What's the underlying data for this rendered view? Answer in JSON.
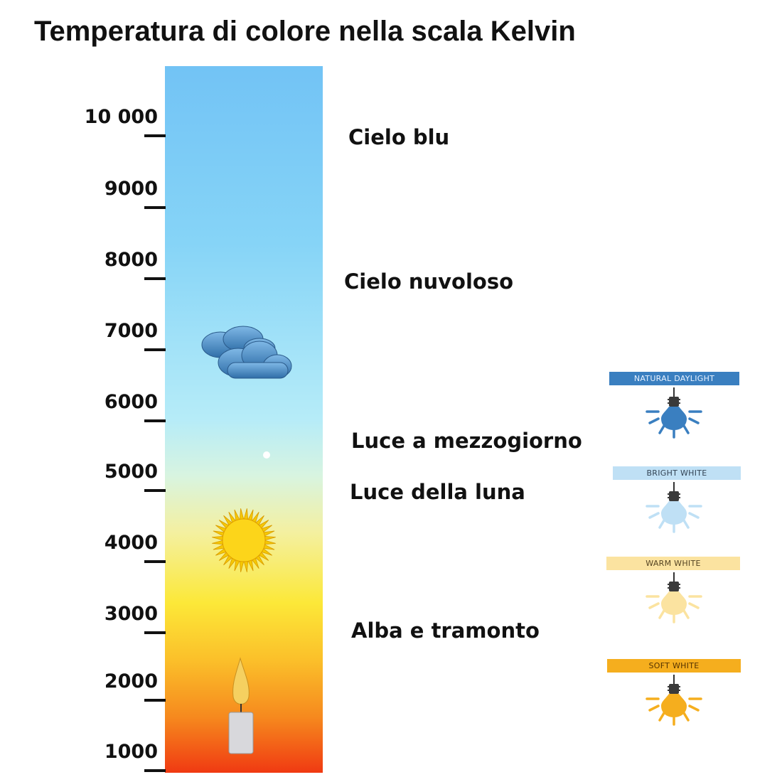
{
  "title": "Temperatura di colore nella scala Kelvin",
  "scale": {
    "ticks": [
      "10 000",
      "9000",
      "8000",
      "7000",
      "6000",
      "5000",
      "4000",
      "3000",
      "2000",
      "1000"
    ]
  },
  "labels": [
    "Cielo blu",
    "Cielo nuvoloso",
    "Luce a mezzogiorno",
    "Luce della luna",
    "Alba e tramonto"
  ],
  "icons": [
    "cloud-icon",
    "sun-icon",
    "candle-icon",
    "moon-dot-icon"
  ],
  "bulbs": [
    {
      "label": "NATURAL DAYLIGHT",
      "color": "#3a7fc0",
      "text_color": "#e8f2ff"
    },
    {
      "label": "BRIGHT WHITE",
      "color": "#bfe0f5",
      "text_color": "#334455"
    },
    {
      "label": "WARM WHITE",
      "color": "#fbe3a0",
      "text_color": "#554422"
    },
    {
      "label": "SOFT WHITE",
      "color": "#f5ae1e",
      "text_color": "#553300"
    }
  ]
}
